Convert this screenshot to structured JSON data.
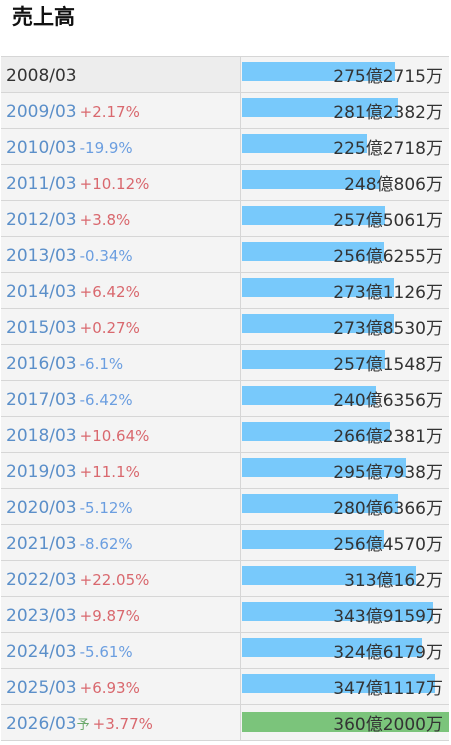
{
  "page": {
    "title": "売上高"
  },
  "colors": {
    "bar": "#78c9fb",
    "forecast_bar": "#7bc47b",
    "increase": "#d9686e",
    "decrease": "#6b9ee0"
  },
  "chart_data": {
    "type": "bar",
    "orientation": "horizontal",
    "title": "売上高",
    "unit": "円",
    "categories": [
      "2008/03",
      "2009/03",
      "2010/03",
      "2011/03",
      "2012/03",
      "2013/03",
      "2014/03",
      "2015/03",
      "2016/03",
      "2017/03",
      "2018/03",
      "2019/03",
      "2020/03",
      "2021/03",
      "2022/03",
      "2023/03",
      "2024/03",
      "2025/03",
      "2026/03"
    ],
    "values": [
      27527150000,
      28123820000,
      22527180000,
      24808060000,
      25750610000,
      25662550000,
      27311260000,
      27385300000,
      25715480000,
      24063560000,
      26623810000,
      29579380000,
      28063660000,
      25645700000,
      31301620000,
      34391590000,
      32461790000,
      34711170000,
      36020000000
    ],
    "rows": [
      {
        "year": "2008/03",
        "change": "",
        "dir": "",
        "value_label": "275億2715万",
        "forecast_mark": ""
      },
      {
        "year": "2009/03",
        "change": "+2.17%",
        "dir": "up",
        "value_label": "281億2382万",
        "forecast_mark": ""
      },
      {
        "year": "2010/03",
        "change": "-19.9%",
        "dir": "down",
        "value_label": "225億2718万",
        "forecast_mark": ""
      },
      {
        "year": "2011/03",
        "change": "+10.12%",
        "dir": "up",
        "value_label": "248億806万",
        "forecast_mark": ""
      },
      {
        "year": "2012/03",
        "change": "+3.8%",
        "dir": "up",
        "value_label": "257億5061万",
        "forecast_mark": ""
      },
      {
        "year": "2013/03",
        "change": "-0.34%",
        "dir": "down",
        "value_label": "256億6255万",
        "forecast_mark": ""
      },
      {
        "year": "2014/03",
        "change": "+6.42%",
        "dir": "up",
        "value_label": "273億1126万",
        "forecast_mark": ""
      },
      {
        "year": "2015/03",
        "change": "+0.27%",
        "dir": "up",
        "value_label": "273億8530万",
        "forecast_mark": ""
      },
      {
        "year": "2016/03",
        "change": "-6.1%",
        "dir": "down",
        "value_label": "257億1548万",
        "forecast_mark": ""
      },
      {
        "year": "2017/03",
        "change": "-6.42%",
        "dir": "down",
        "value_label": "240億6356万",
        "forecast_mark": ""
      },
      {
        "year": "2018/03",
        "change": "+10.64%",
        "dir": "up",
        "value_label": "266億2381万",
        "forecast_mark": ""
      },
      {
        "year": "2019/03",
        "change": "+11.1%",
        "dir": "up",
        "value_label": "295億7938万",
        "forecast_mark": ""
      },
      {
        "year": "2020/03",
        "change": "-5.12%",
        "dir": "down",
        "value_label": "280億6366万",
        "forecast_mark": ""
      },
      {
        "year": "2021/03",
        "change": "-8.62%",
        "dir": "down",
        "value_label": "256億4570万",
        "forecast_mark": ""
      },
      {
        "year": "2022/03",
        "change": "+22.05%",
        "dir": "up",
        "value_label": "313億162万",
        "forecast_mark": ""
      },
      {
        "year": "2023/03",
        "change": "+9.87%",
        "dir": "up",
        "value_label": "343億9159万",
        "forecast_mark": ""
      },
      {
        "year": "2024/03",
        "change": "-5.61%",
        "dir": "down",
        "value_label": "324億6179万",
        "forecast_mark": ""
      },
      {
        "year": "2025/03",
        "change": "+6.93%",
        "dir": "up",
        "value_label": "347億1117万",
        "forecast_mark": ""
      },
      {
        "year": "2026/03",
        "change": "+3.77%",
        "dir": "up",
        "value_label": "360億2000万",
        "forecast_mark": "予"
      }
    ],
    "forecast_index": 18,
    "xlim": [
      0,
      36020000000
    ],
    "grid": false,
    "legend": "none"
  }
}
